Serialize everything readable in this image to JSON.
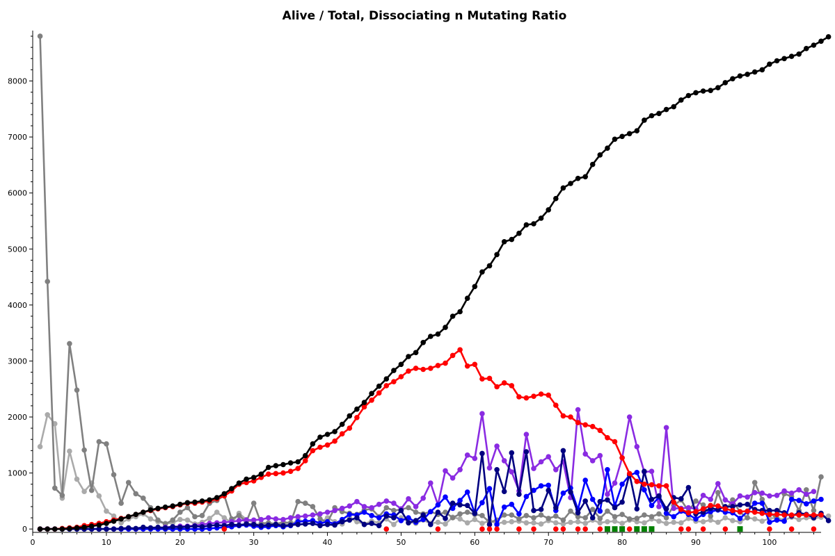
{
  "chart_data": {
    "type": "line",
    "title": "Alive / Total, Dissociating n Mutating Ratio",
    "xlabel": "",
    "ylabel": "",
    "xlim": [
      0,
      107
    ],
    "ylim": [
      -60,
      8900
    ],
    "x_ticks": [
      0,
      10,
      20,
      30,
      40,
      50,
      60,
      70,
      80,
      90,
      100
    ],
    "y_ticks": [
      0,
      1000,
      2000,
      3000,
      4000,
      5000,
      6000,
      7000,
      8000
    ],
    "grid": false,
    "legend": "none",
    "x_start": 1,
    "series": [
      {
        "color": "#000000",
        "marker": "circle",
        "values": [
          0,
          0,
          0,
          0,
          10,
          20,
          30,
          50,
          70,
          100,
          140,
          180,
          220,
          260,
          300,
          340,
          370,
          390,
          410,
          440,
          470,
          480,
          500,
          520,
          560,
          630,
          720,
          820,
          890,
          920,
          980,
          1100,
          1130,
          1150,
          1180,
          1200,
          1310,
          1520,
          1640,
          1690,
          1740,
          1870,
          2020,
          2140,
          2260,
          2420,
          2550,
          2680,
          2830,
          2940,
          3080,
          3150,
          3330,
          3440,
          3480,
          3600,
          3800,
          3880,
          4120,
          4330,
          4590,
          4700,
          4900,
          5130,
          5170,
          5280,
          5430,
          5450,
          5550,
          5700,
          5900,
          6090,
          6170,
          6260,
          6290,
          6510,
          6680,
          6800,
          6960,
          7010,
          7060,
          7110,
          7300,
          7380,
          7420,
          7490,
          7540,
          7660,
          7740,
          7790,
          7820,
          7830,
          7880,
          7970,
          8040,
          8090,
          8120,
          8160,
          8200,
          8300,
          8360,
          8400,
          8440,
          8480,
          8580,
          8640,
          8710,
          8790
        ]
      },
      {
        "color": "#ff0000",
        "marker": "circle",
        "values": [
          0,
          0,
          0,
          10,
          20,
          30,
          60,
          80,
          100,
          130,
          160,
          190,
          220,
          260,
          300,
          330,
          360,
          380,
          400,
          430,
          460,
          460,
          480,
          500,
          540,
          590,
          680,
          800,
          830,
          860,
          920,
          980,
          990,
          1000,
          1030,
          1080,
          1220,
          1400,
          1460,
          1500,
          1570,
          1700,
          1800,
          1990,
          2180,
          2300,
          2430,
          2560,
          2630,
          2720,
          2820,
          2870,
          2850,
          2870,
          2920,
          2960,
          3100,
          3200,
          2910,
          2940,
          2680,
          2690,
          2540,
          2610,
          2560,
          2360,
          2340,
          2370,
          2410,
          2390,
          2210,
          2020,
          2000,
          1900,
          1860,
          1830,
          1760,
          1630,
          1560,
          1270,
          990,
          850,
          800,
          790,
          770,
          770,
          480,
          350,
          290,
          310,
          360,
          420,
          410,
          360,
          330,
          310,
          320,
          300,
          280,
          260,
          260,
          250,
          250,
          250,
          250,
          250,
          250
        ]
      },
      {
        "color": "#808080",
        "marker": "circle",
        "values": [
          8800,
          4420,
          730,
          600,
          3310,
          2480,
          1410,
          690,
          1560,
          1520,
          970,
          460,
          830,
          630,
          550,
          380,
          160,
          90,
          160,
          300,
          380,
          220,
          240,
          460,
          510,
          600,
          180,
          240,
          130,
          460,
          100,
          110,
          90,
          120,
          110,
          490,
          460,
          400,
          180,
          120,
          380,
          310,
          280,
          260,
          340,
          360,
          220,
          380,
          330,
          350,
          380,
          300,
          270,
          310,
          260,
          300,
          200,
          270,
          300,
          260,
          240,
          120,
          160,
          250,
          250,
          180,
          240,
          200,
          250,
          190,
          230,
          160,
          320,
          220,
          200,
          350,
          190,
          320,
          220,
          260,
          180,
          190,
          250,
          220,
          270,
          200,
          420,
          520,
          320,
          500,
          430,
          230,
          650,
          320,
          520,
          300,
          200,
          830,
          530,
          300,
          180,
          630,
          580,
          330,
          700,
          330,
          930
        ]
      },
      {
        "color": "#aaaaaa",
        "marker": "circle",
        "values": [
          1470,
          2040,
          1880,
          550,
          1390,
          890,
          670,
          820,
          590,
          320,
          230,
          110,
          180,
          220,
          270,
          180,
          130,
          100,
          110,
          170,
          160,
          90,
          120,
          190,
          300,
          200,
          110,
          280,
          170,
          110,
          60,
          80,
          90,
          90,
          70,
          170,
          130,
          150,
          110,
          200,
          130,
          90,
          200,
          130,
          90,
          140,
          110,
          180,
          80,
          200,
          130,
          100,
          160,
          100,
          120,
          90,
          210,
          180,
          110,
          170,
          100,
          150,
          100,
          120,
          130,
          140,
          110,
          110,
          90,
          150,
          110,
          90,
          120,
          130,
          100,
          160,
          110,
          130,
          140,
          100,
          160,
          130,
          110,
          180,
          140,
          100,
          120,
          110,
          190,
          140,
          130,
          160,
          120,
          200,
          150,
          130,
          200,
          180,
          140,
          190,
          200,
          160,
          210,
          170,
          200,
          190,
          210,
          230
        ]
      },
      {
        "color": "#000080",
        "marker": "circle",
        "values": [
          0,
          0,
          0,
          0,
          0,
          0,
          0,
          0,
          0,
          0,
          0,
          10,
          20,
          10,
          30,
          20,
          30,
          20,
          40,
          30,
          40,
          50,
          40,
          60,
          70,
          60,
          80,
          70,
          90,
          80,
          60,
          70,
          80,
          60,
          70,
          80,
          90,
          100,
          60,
          80,
          70,
          130,
          160,
          200,
          80,
          100,
          60,
          230,
          200,
          330,
          110,
          150,
          250,
          80,
          300,
          190,
          460,
          430,
          420,
          280,
          1350,
          80,
          1060,
          670,
          1360,
          620,
          1380,
          330,
          350,
          690,
          380,
          1400,
          660,
          290,
          500,
          200,
          490,
          520,
          380,
          480,
          980,
          360,
          1030,
          530,
          590,
          360,
          560,
          540,
          740,
          270,
          300,
          370,
          350,
          400,
          400,
          430,
          440,
          350,
          330,
          330,
          330,
          290,
          230,
          290,
          260,
          200,
          280,
          150
        ]
      },
      {
        "color": "#0000ff",
        "marker": "circle",
        "values": [
          0,
          0,
          0,
          0,
          0,
          0,
          0,
          0,
          0,
          0,
          0,
          0,
          0,
          0,
          0,
          0,
          0,
          0,
          0,
          0,
          0,
          0,
          0,
          10,
          20,
          30,
          40,
          60,
          70,
          50,
          30,
          40,
          60,
          40,
          60,
          130,
          140,
          150,
          100,
          130,
          90,
          170,
          260,
          250,
          300,
          240,
          200,
          270,
          250,
          150,
          200,
          120,
          170,
          310,
          430,
          570,
          370,
          510,
          660,
          280,
          470,
          720,
          80,
          390,
          440,
          270,
          580,
          690,
          770,
          780,
          330,
          640,
          730,
          350,
          870,
          530,
          320,
          1060,
          410,
          800,
          960,
          1010,
          700,
          420,
          570,
          280,
          220,
          320,
          260,
          180,
          260,
          310,
          340,
          300,
          290,
          190,
          310,
          460,
          460,
          120,
          160,
          140,
          530,
          510,
          450,
          500,
          530
        ]
      },
      {
        "color": "#8a2be2",
        "marker": "circle",
        "values": [
          0,
          0,
          0,
          0,
          0,
          0,
          0,
          0,
          0,
          0,
          0,
          0,
          0,
          0,
          10,
          20,
          20,
          30,
          40,
          50,
          50,
          60,
          80,
          100,
          110,
          120,
          130,
          150,
          160,
          160,
          170,
          200,
          180,
          170,
          200,
          220,
          230,
          250,
          270,
          300,
          330,
          370,
          410,
          490,
          400,
          380,
          440,
          500,
          460,
          360,
          540,
          400,
          550,
          820,
          430,
          1040,
          910,
          1060,
          1320,
          1260,
          2060,
          1090,
          1480,
          1220,
          1020,
          680,
          1690,
          1080,
          1200,
          1290,
          1060,
          1200,
          560,
          2130,
          1340,
          1220,
          1310,
          620,
          820,
          1270,
          2000,
          1470,
          1020,
          1030,
          400,
          1810,
          370,
          370,
          380,
          360,
          600,
          530,
          810,
          520,
          450,
          590,
          570,
          650,
          640,
          590,
          600,
          680,
          640,
          700,
          620,
          670
        ]
      }
    ],
    "markers": [
      {
        "color": "#ff0000",
        "shape": "circle",
        "x": [
          26,
          48,
          55,
          61,
          62,
          63,
          66,
          68,
          71,
          72,
          74,
          75,
          77,
          79,
          81,
          82,
          88,
          89,
          91,
          94,
          100,
          103,
          106
        ]
      },
      {
        "color": "#008000",
        "shape": "square",
        "x": [
          78,
          79,
          80,
          82,
          83,
          84,
          96
        ]
      }
    ]
  }
}
